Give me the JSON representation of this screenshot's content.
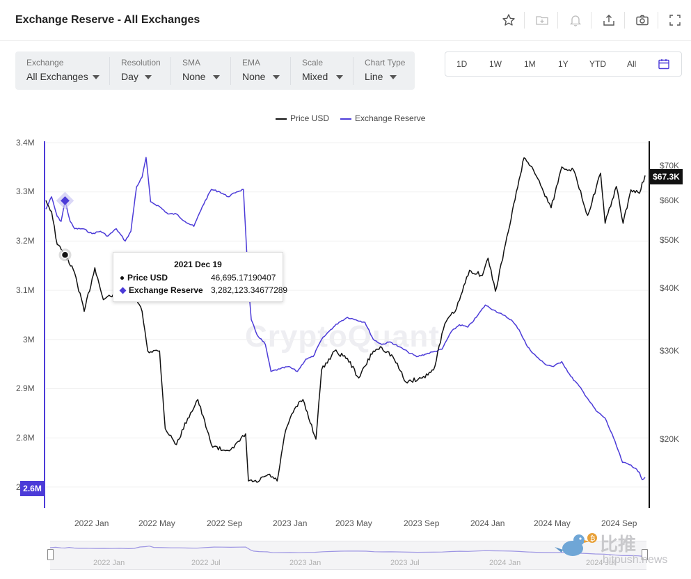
{
  "header": {
    "title": "Exchange Reserve - All Exchanges",
    "icons": [
      "star-icon",
      "add-folder-icon",
      "bell-icon",
      "share-icon",
      "camera-icon",
      "fullscreen-icon"
    ]
  },
  "controls": [
    {
      "label": "Exchange",
      "value": "All Exchanges"
    },
    {
      "label": "Resolution",
      "value": "Day"
    },
    {
      "label": "SMA",
      "value": "None"
    },
    {
      "label": "EMA",
      "value": "None"
    },
    {
      "label": "Scale",
      "value": "Mixed"
    },
    {
      "label": "Chart Type",
      "value": "Line"
    }
  ],
  "ranges": [
    "1D",
    "1W",
    "1M",
    "1Y",
    "YTD",
    "All"
  ],
  "watermark": "CryptoQuant",
  "colors": {
    "price": "#111111",
    "reserve": "#4c3bd8"
  },
  "tooltip": {
    "date": "2021 Dec 19",
    "rows": [
      {
        "name": "Price USD",
        "value": "46,695.17190407"
      },
      {
        "name": "Exchange Reserve",
        "value": "3,282,123.34677289"
      }
    ]
  },
  "badges": {
    "left": "2.6M",
    "right": "$67.3K"
  },
  "navigator": {
    "ticks": [
      "2022 Jan",
      "2022 Jul",
      "2023 Jan",
      "2023 Jul",
      "2024 Jan",
      "2024 Jul"
    ]
  },
  "brand": {
    "cn": "比推",
    "en": "bitpush.news"
  },
  "chart_data": {
    "type": "line",
    "title": "Exchange Reserve - All Exchanges",
    "legend": [
      "Price USD",
      "Exchange Reserve"
    ],
    "legend_position": "top-center",
    "grid": true,
    "y_left": {
      "ticks": [
        "3.4M",
        "3.3M",
        "3.2M",
        "3.1M",
        "3M",
        "2.9M",
        "2.8M",
        "2"
      ],
      "range": [
        2.64,
        3.4
      ],
      "unit": "BTC"
    },
    "y_right": {
      "ticks": [
        "$70K",
        "$60K",
        "$50K",
        "$40K",
        "$30K",
        "$20K"
      ],
      "scale": "log",
      "range": [
        14000,
        74000
      ]
    },
    "x_ticks": [
      "2022 Jan",
      "2022 May",
      "2022 Sep",
      "2023 Jan",
      "2023 May",
      "2023 Sep",
      "2024 Jan",
      "2024 May",
      "2024 Sep"
    ],
    "x_range": [
      "2021-11-15",
      "2024-10-20"
    ],
    "series": [
      {
        "name": "Exchange Reserve",
        "axis": "left",
        "points": [
          [
            "2021-11-15",
            3.265
          ],
          [
            "2021-11-25",
            3.29
          ],
          [
            "2021-12-05",
            3.25
          ],
          [
            "2021-12-12",
            3.24
          ],
          [
            "2021-12-19",
            3.282
          ],
          [
            "2021-12-28",
            3.24
          ],
          [
            "2022-01-05",
            3.225
          ],
          [
            "2022-01-20",
            3.225
          ],
          [
            "2022-02-05",
            3.215
          ],
          [
            "2022-02-20",
            3.22
          ],
          [
            "2022-03-05",
            3.21
          ],
          [
            "2022-03-20",
            3.225
          ],
          [
            "2022-04-05",
            3.2
          ],
          [
            "2022-04-15",
            3.22
          ],
          [
            "2022-04-25",
            3.31
          ],
          [
            "2022-05-05",
            3.33
          ],
          [
            "2022-05-12",
            3.37
          ],
          [
            "2022-05-20",
            3.28
          ],
          [
            "2022-06-05",
            3.27
          ],
          [
            "2022-06-20",
            3.255
          ],
          [
            "2022-07-05",
            3.255
          ],
          [
            "2022-07-20",
            3.24
          ],
          [
            "2022-08-05",
            3.23
          ],
          [
            "2022-08-20",
            3.27
          ],
          [
            "2022-09-05",
            3.305
          ],
          [
            "2022-09-20",
            3.3
          ],
          [
            "2022-10-05",
            3.29
          ],
          [
            "2022-10-20",
            3.3
          ],
          [
            "2022-11-01",
            3.305
          ],
          [
            "2022-11-05",
            3.22
          ],
          [
            "2022-11-10",
            3.11
          ],
          [
            "2022-11-15",
            3.04
          ],
          [
            "2022-11-25",
            3.01
          ],
          [
            "2022-12-10",
            2.99
          ],
          [
            "2022-12-20",
            2.935
          ],
          [
            "2023-01-05",
            2.94
          ],
          [
            "2023-01-20",
            2.945
          ],
          [
            "2023-02-05",
            2.935
          ],
          [
            "2023-02-20",
            2.96
          ],
          [
            "2023-03-05",
            2.965
          ],
          [
            "2023-03-20",
            3.0
          ],
          [
            "2023-04-05",
            3.02
          ],
          [
            "2023-04-20",
            3.035
          ],
          [
            "2023-05-05",
            3.045
          ],
          [
            "2023-05-20",
            3.04
          ],
          [
            "2023-06-05",
            3.035
          ],
          [
            "2023-06-20",
            3.0
          ],
          [
            "2023-07-05",
            2.99
          ],
          [
            "2023-07-20",
            2.995
          ],
          [
            "2023-08-05",
            2.985
          ],
          [
            "2023-08-20",
            2.975
          ],
          [
            "2023-09-05",
            2.965
          ],
          [
            "2023-09-20",
            2.97
          ],
          [
            "2023-10-05",
            2.975
          ],
          [
            "2023-10-20",
            2.98
          ],
          [
            "2023-11-05",
            3.015
          ],
          [
            "2023-11-20",
            3.03
          ],
          [
            "2023-12-05",
            3.025
          ],
          [
            "2023-12-20",
            3.045
          ],
          [
            "2024-01-05",
            3.07
          ],
          [
            "2024-01-20",
            3.06
          ],
          [
            "2024-02-05",
            3.05
          ],
          [
            "2024-02-20",
            3.04
          ],
          [
            "2024-03-05",
            3.02
          ],
          [
            "2024-03-20",
            2.985
          ],
          [
            "2024-04-05",
            2.965
          ],
          [
            "2024-04-20",
            2.95
          ],
          [
            "2024-05-05",
            2.945
          ],
          [
            "2024-05-20",
            2.955
          ],
          [
            "2024-06-05",
            2.925
          ],
          [
            "2024-06-20",
            2.905
          ],
          [
            "2024-07-05",
            2.88
          ],
          [
            "2024-07-20",
            2.855
          ],
          [
            "2024-08-05",
            2.84
          ],
          [
            "2024-08-20",
            2.8
          ],
          [
            "2024-09-05",
            2.75
          ],
          [
            "2024-09-20",
            2.745
          ],
          [
            "2024-10-05",
            2.73
          ],
          [
            "2024-10-10",
            2.715
          ],
          [
            "2024-10-15",
            2.72
          ]
        ]
      },
      {
        "name": "Price USD",
        "axis": "right",
        "points": [
          [
            "2021-11-15",
            60000
          ],
          [
            "2021-11-25",
            57000
          ],
          [
            "2021-12-05",
            49000
          ],
          [
            "2021-12-19",
            46695
          ],
          [
            "2022-01-05",
            43000
          ],
          [
            "2022-01-22",
            36000
          ],
          [
            "2022-02-10",
            44000
          ],
          [
            "2022-02-25",
            38000
          ],
          [
            "2022-03-15",
            39000
          ],
          [
            "2022-03-28",
            47000
          ],
          [
            "2022-04-15",
            40000
          ],
          [
            "2022-05-05",
            36000
          ],
          [
            "2022-05-15",
            30000
          ],
          [
            "2022-06-05",
            30000
          ],
          [
            "2022-06-15",
            21000
          ],
          [
            "2022-07-05",
            19500
          ],
          [
            "2022-07-25",
            22000
          ],
          [
            "2022-08-12",
            24000
          ],
          [
            "2022-09-05",
            19500
          ],
          [
            "2022-09-25",
            19000
          ],
          [
            "2022-10-15",
            19200
          ],
          [
            "2022-11-05",
            20500
          ],
          [
            "2022-11-10",
            16500
          ],
          [
            "2022-11-25",
            16400
          ],
          [
            "2022-12-15",
            17000
          ],
          [
            "2022-12-31",
            16500
          ],
          [
            "2023-01-15",
            20800
          ],
          [
            "2023-01-31",
            23000
          ],
          [
            "2023-02-15",
            24000
          ],
          [
            "2023-03-10",
            20000
          ],
          [
            "2023-03-20",
            27500
          ],
          [
            "2023-04-12",
            30000
          ],
          [
            "2023-05-05",
            29000
          ],
          [
            "2023-05-25",
            26500
          ],
          [
            "2023-06-20",
            30000
          ],
          [
            "2023-07-05",
            30500
          ],
          [
            "2023-07-25",
            29200
          ],
          [
            "2023-08-17",
            26000
          ],
          [
            "2023-09-15",
            26500
          ],
          [
            "2023-10-05",
            27500
          ],
          [
            "2023-10-25",
            34000
          ],
          [
            "2023-11-15",
            36500
          ],
          [
            "2023-12-08",
            43500
          ],
          [
            "2023-12-31",
            42500
          ],
          [
            "2024-01-10",
            46000
          ],
          [
            "2024-01-23",
            39500
          ],
          [
            "2024-02-15",
            52000
          ],
          [
            "2024-03-05",
            66000
          ],
          [
            "2024-03-14",
            73000
          ],
          [
            "2024-03-28",
            70000
          ],
          [
            "2024-04-15",
            63500
          ],
          [
            "2024-05-01",
            58000
          ],
          [
            "2024-05-20",
            70000
          ],
          [
            "2024-06-10",
            69000
          ],
          [
            "2024-07-05",
            56000
          ],
          [
            "2024-07-28",
            68000
          ],
          [
            "2024-08-05",
            54000
          ],
          [
            "2024-08-25",
            64000
          ],
          [
            "2024-09-06",
            54000
          ],
          [
            "2024-09-20",
            63000
          ],
          [
            "2024-10-05",
            62000
          ],
          [
            "2024-10-15",
            67300
          ]
        ]
      }
    ],
    "highlight": {
      "date": "2021-12-19",
      "price": 46695.17190407,
      "reserve": 3282123.34677289
    }
  }
}
